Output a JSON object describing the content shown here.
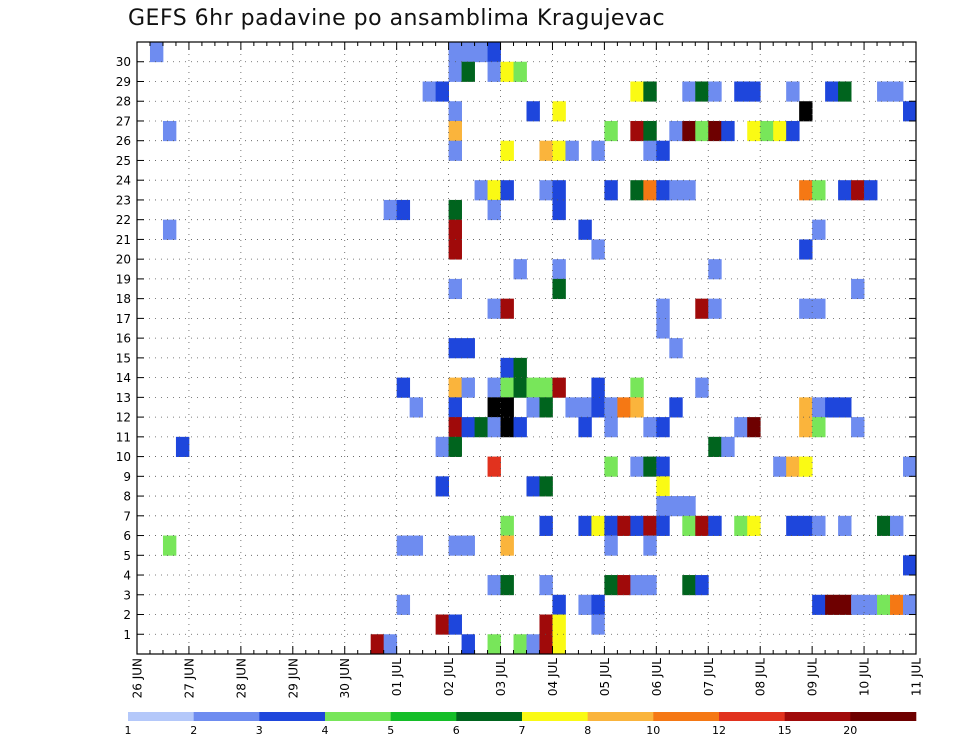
{
  "title": "GEFS 6hr padavine po ansamblima Kragujevac",
  "chart_data": {
    "type": "heatmap",
    "title": "GEFS 6hr padavine po ansamblima Kragujevac",
    "x_tick_labels": [
      "26 JUN",
      "27 JUN",
      "28 JUN",
      "29 JUN",
      "30 JUN",
      "01 JUL",
      "02 JUL",
      "03 JUL",
      "04 JUL",
      "05 JUL",
      "06 JUL",
      "07 JUL",
      "08 JUL",
      "09 JUL",
      "10 JUL",
      "11 JUL"
    ],
    "y_tick_labels": [
      "1",
      "2",
      "3",
      "4",
      "5",
      "6",
      "7",
      "8",
      "9",
      "10",
      "11",
      "12",
      "13",
      "14",
      "15",
      "16",
      "17",
      "18",
      "19",
      "20",
      "21",
      "22",
      "23",
      "24",
      "25",
      "26",
      "27",
      "28",
      "29",
      "30"
    ],
    "x_step": "6hr",
    "grid": true,
    "legend": {
      "placement": "bottom",
      "labels": [
        "1",
        "2",
        "3",
        "4",
        "5",
        "6",
        "7",
        "8",
        "10",
        "12",
        "15",
        "20"
      ],
      "colors": [
        "#b4c8fa",
        "#6e8cf0",
        "#1e46dc",
        "#78e65a",
        "#14be28",
        "#00641e",
        "#fafa14",
        "#fab43c",
        "#f57814",
        "#e1321e",
        "#a00a0a",
        "#6e0000"
      ]
    },
    "cells": [
      [
        30,
        1,
        1
      ],
      [
        30,
        24,
        1
      ],
      [
        30,
        25,
        1
      ],
      [
        30,
        26,
        1
      ],
      [
        30,
        27,
        2
      ],
      [
        29,
        24,
        1
      ],
      [
        29,
        25,
        5
      ],
      [
        29,
        27,
        1
      ],
      [
        29,
        28,
        6
      ],
      [
        29,
        29,
        3
      ],
      [
        28,
        22,
        1
      ],
      [
        28,
        23,
        2
      ],
      [
        28,
        38,
        6
      ],
      [
        28,
        39,
        5
      ],
      [
        28,
        42,
        1
      ],
      [
        28,
        43,
        5
      ],
      [
        28,
        44,
        1
      ],
      [
        28,
        46,
        2
      ],
      [
        28,
        47,
        2
      ],
      [
        28,
        50,
        1
      ],
      [
        28,
        53,
        2
      ],
      [
        28,
        54,
        5
      ],
      [
        28,
        57,
        1
      ],
      [
        28,
        58,
        1
      ],
      [
        27,
        24,
        1
      ],
      [
        27,
        30,
        2
      ],
      [
        27,
        32,
        6
      ],
      [
        27,
        51,
        12
      ],
      [
        27,
        59,
        2
      ],
      [
        26,
        2,
        1
      ],
      [
        26,
        24,
        7
      ],
      [
        26,
        36,
        3
      ],
      [
        26,
        38,
        10
      ],
      [
        26,
        39,
        5
      ],
      [
        26,
        41,
        1
      ],
      [
        26,
        42,
        11
      ],
      [
        26,
        43,
        3
      ],
      [
        26,
        44,
        11
      ],
      [
        26,
        45,
        2
      ],
      [
        26,
        47,
        6
      ],
      [
        26,
        48,
        3
      ],
      [
        26,
        49,
        6
      ],
      [
        26,
        50,
        2
      ],
      [
        25,
        24,
        1
      ],
      [
        25,
        28,
        6
      ],
      [
        25,
        31,
        7
      ],
      [
        25,
        32,
        6
      ],
      [
        25,
        33,
        1
      ],
      [
        25,
        35,
        1
      ],
      [
        25,
        39,
        1
      ],
      [
        25,
        40,
        2
      ],
      [
        23,
        26,
        1
      ],
      [
        23,
        27,
        6
      ],
      [
        23,
        28,
        2
      ],
      [
        23,
        31,
        1
      ],
      [
        23,
        32,
        2
      ],
      [
        23,
        36,
        2
      ],
      [
        23,
        38,
        5
      ],
      [
        23,
        39,
        8
      ],
      [
        23,
        40,
        2
      ],
      [
        23,
        41,
        1
      ],
      [
        23,
        42,
        1
      ],
      [
        23,
        51,
        8
      ],
      [
        23,
        52,
        3
      ],
      [
        23,
        54,
        2
      ],
      [
        23,
        55,
        10
      ],
      [
        23,
        56,
        2
      ],
      [
        22,
        19,
        1
      ],
      [
        22,
        20,
        2
      ],
      [
        22,
        24,
        5
      ],
      [
        22,
        27,
        1
      ],
      [
        22,
        32,
        2
      ],
      [
        21,
        2,
        1
      ],
      [
        21,
        24,
        10
      ],
      [
        21,
        34,
        2
      ],
      [
        21,
        52,
        1
      ],
      [
        20,
        24,
        10
      ],
      [
        20,
        35,
        1
      ],
      [
        20,
        51,
        2
      ],
      [
        19,
        29,
        1
      ],
      [
        19,
        32,
        1
      ],
      [
        19,
        44,
        1
      ],
      [
        18,
        24,
        1
      ],
      [
        18,
        32,
        5
      ],
      [
        18,
        55,
        1
      ],
      [
        17,
        27,
        1
      ],
      [
        17,
        28,
        10
      ],
      [
        17,
        40,
        1
      ],
      [
        17,
        43,
        10
      ],
      [
        17,
        44,
        1
      ],
      [
        17,
        51,
        1
      ],
      [
        17,
        52,
        1
      ],
      [
        16,
        40,
        1
      ],
      [
        15,
        24,
        2
      ],
      [
        15,
        25,
        2
      ],
      [
        15,
        41,
        1
      ],
      [
        14,
        28,
        2
      ],
      [
        14,
        29,
        5
      ],
      [
        13,
        20,
        2
      ],
      [
        13,
        24,
        7
      ],
      [
        13,
        25,
        1
      ],
      [
        13,
        27,
        1
      ],
      [
        13,
        28,
        3
      ],
      [
        13,
        29,
        5
      ],
      [
        13,
        30,
        3
      ],
      [
        13,
        31,
        3
      ],
      [
        13,
        32,
        10
      ],
      [
        13,
        35,
        2
      ],
      [
        13,
        38,
        3
      ],
      [
        13,
        43,
        1
      ],
      [
        12,
        21,
        1
      ],
      [
        12,
        24,
        2
      ],
      [
        12,
        27,
        12
      ],
      [
        12,
        28,
        12
      ],
      [
        12,
        30,
        1
      ],
      [
        12,
        31,
        5
      ],
      [
        12,
        33,
        1
      ],
      [
        12,
        34,
        1
      ],
      [
        12,
        35,
        2
      ],
      [
        12,
        36,
        1
      ],
      [
        12,
        37,
        8
      ],
      [
        12,
        38,
        7
      ],
      [
        12,
        41,
        2
      ],
      [
        12,
        51,
        7
      ],
      [
        12,
        52,
        1
      ],
      [
        12,
        53,
        2
      ],
      [
        12,
        54,
        2
      ],
      [
        11,
        24,
        10
      ],
      [
        11,
        25,
        2
      ],
      [
        11,
        26,
        5
      ],
      [
        11,
        27,
        1
      ],
      [
        11,
        28,
        12
      ],
      [
        11,
        29,
        2
      ],
      [
        11,
        34,
        2
      ],
      [
        11,
        36,
        1
      ],
      [
        11,
        39,
        1
      ],
      [
        11,
        40,
        2
      ],
      [
        11,
        46,
        1
      ],
      [
        11,
        47,
        11
      ],
      [
        11,
        51,
        7
      ],
      [
        11,
        52,
        3
      ],
      [
        11,
        55,
        1
      ],
      [
        10,
        3,
        2
      ],
      [
        10,
        23,
        1
      ],
      [
        10,
        24,
        5
      ],
      [
        10,
        44,
        5
      ],
      [
        10,
        45,
        1
      ],
      [
        9,
        27,
        9
      ],
      [
        9,
        36,
        3
      ],
      [
        9,
        38,
        1
      ],
      [
        9,
        39,
        5
      ],
      [
        9,
        40,
        2
      ],
      [
        9,
        49,
        1
      ],
      [
        9,
        50,
        7
      ],
      [
        9,
        51,
        6
      ],
      [
        9,
        59,
        1
      ],
      [
        8,
        23,
        2
      ],
      [
        8,
        30,
        2
      ],
      [
        8,
        31,
        5
      ],
      [
        8,
        40,
        6
      ],
      [
        7,
        40,
        1
      ],
      [
        7,
        41,
        1
      ],
      [
        7,
        42,
        1
      ],
      [
        6,
        28,
        3
      ],
      [
        6,
        31,
        2
      ],
      [
        6,
        34,
        2
      ],
      [
        6,
        35,
        6
      ],
      [
        6,
        36,
        2
      ],
      [
        6,
        37,
        10
      ],
      [
        6,
        38,
        2
      ],
      [
        6,
        39,
        10
      ],
      [
        6,
        40,
        2
      ],
      [
        6,
        42,
        3
      ],
      [
        6,
        43,
        10
      ],
      [
        6,
        44,
        2
      ],
      [
        6,
        46,
        3
      ],
      [
        6,
        47,
        6
      ],
      [
        6,
        50,
        2
      ],
      [
        6,
        51,
        2
      ],
      [
        6,
        52,
        1
      ],
      [
        6,
        54,
        1
      ],
      [
        6,
        57,
        5
      ],
      [
        6,
        58,
        1
      ],
      [
        5,
        2,
        3
      ],
      [
        5,
        20,
        1
      ],
      [
        5,
        21,
        1
      ],
      [
        5,
        24,
        1
      ],
      [
        5,
        25,
        1
      ],
      [
        5,
        28,
        7
      ],
      [
        5,
        36,
        1
      ],
      [
        5,
        39,
        1
      ],
      [
        4,
        59,
        2
      ],
      [
        3,
        27,
        1
      ],
      [
        3,
        28,
        5
      ],
      [
        3,
        31,
        1
      ],
      [
        3,
        36,
        5
      ],
      [
        3,
        37,
        10
      ],
      [
        3,
        38,
        1
      ],
      [
        3,
        39,
        1
      ],
      [
        3,
        42,
        5
      ],
      [
        3,
        43,
        2
      ],
      [
        2,
        20,
        1
      ],
      [
        2,
        32,
        2
      ],
      [
        2,
        34,
        1
      ],
      [
        2,
        35,
        2
      ],
      [
        2,
        52,
        2
      ],
      [
        2,
        53,
        11
      ],
      [
        2,
        54,
        11
      ],
      [
        2,
        55,
        1
      ],
      [
        2,
        56,
        1
      ],
      [
        2,
        57,
        3
      ],
      [
        2,
        58,
        8
      ],
      [
        2,
        59,
        1
      ],
      [
        1,
        23,
        10
      ],
      [
        1,
        24,
        2
      ],
      [
        1,
        31,
        10
      ],
      [
        1,
        32,
        6
      ],
      [
        1,
        35,
        1
      ],
      [
        0,
        18,
        10
      ],
      [
        0,
        19,
        1
      ],
      [
        0,
        25,
        2
      ],
      [
        0,
        27,
        3
      ],
      [
        0,
        29,
        3
      ],
      [
        0,
        30,
        1
      ],
      [
        0,
        31,
        10
      ],
      [
        0,
        32,
        6
      ]
    ]
  }
}
